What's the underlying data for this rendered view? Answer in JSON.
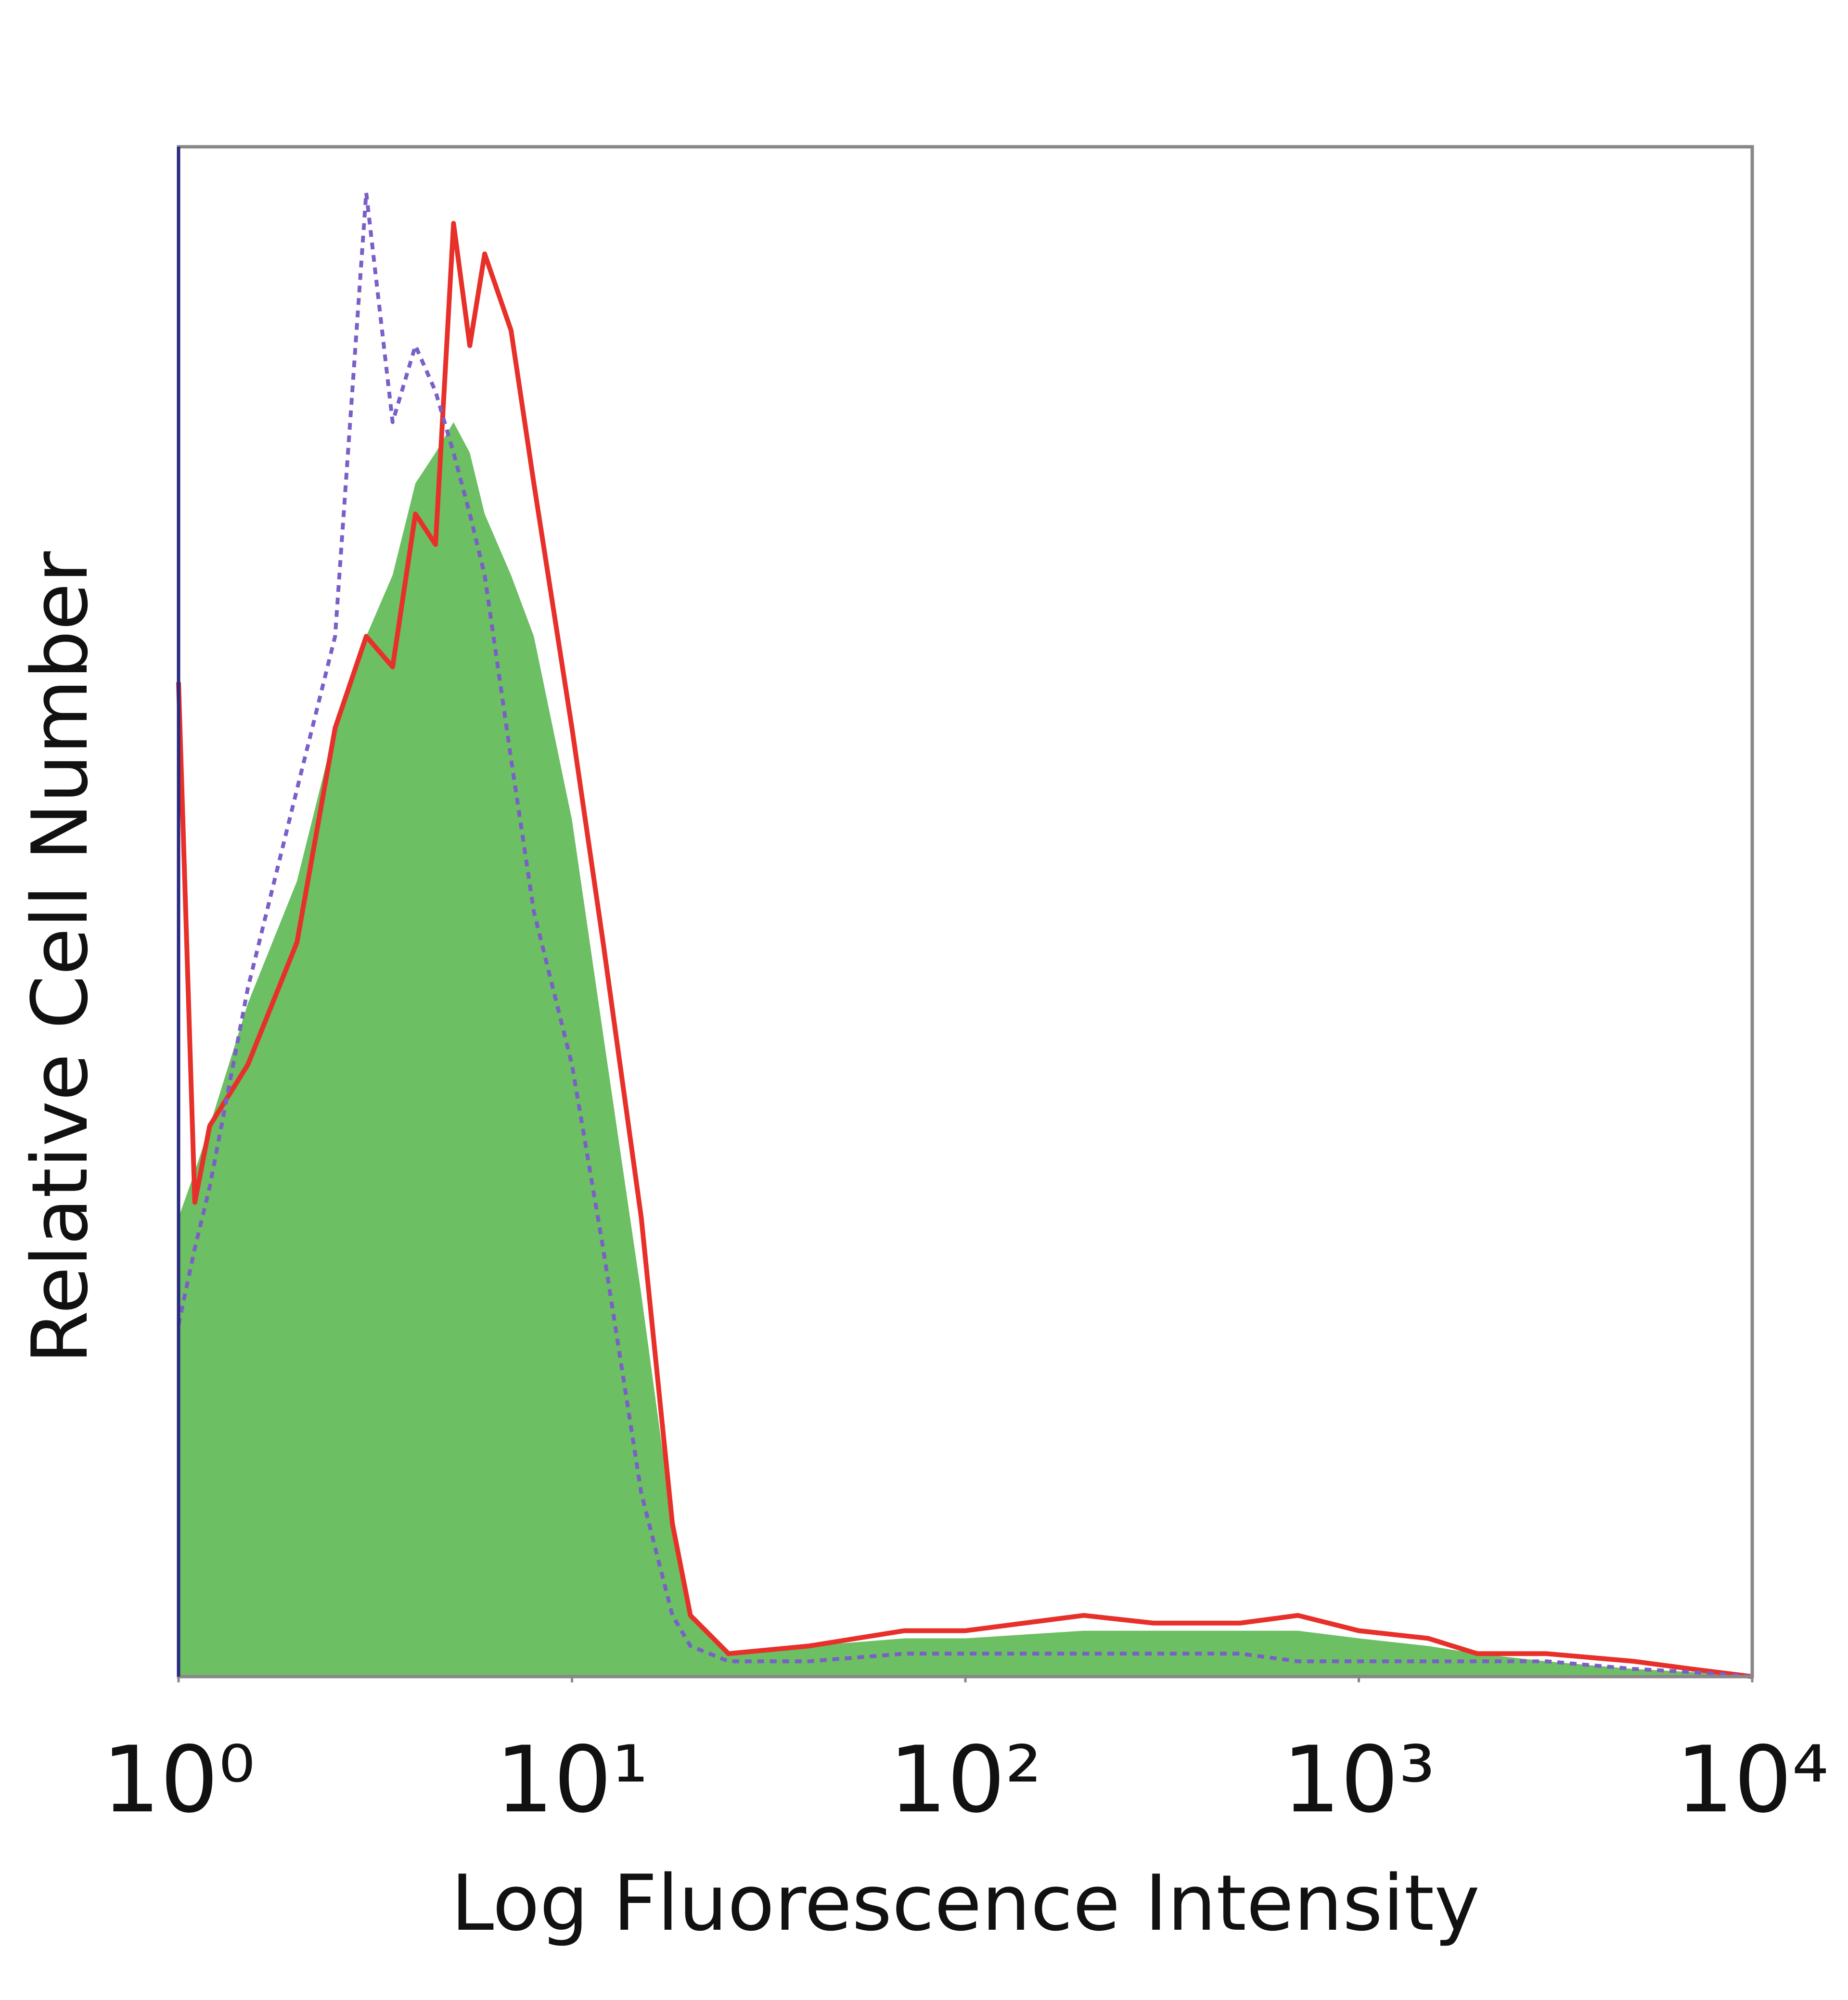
{
  "chart_data": {
    "type": "histogram-overlay",
    "x_label": "Log Fluorescence Intensity",
    "y_label": "Relative Cell Number",
    "xscale": "log",
    "xlim": [
      1,
      10000
    ],
    "xticks": [
      {
        "value": 1,
        "label": "10⁰"
      },
      {
        "value": 10,
        "label": "10¹"
      },
      {
        "value": 100,
        "label": "10²"
      },
      {
        "value": 1000,
        "label": "10³"
      },
      {
        "value": 10000,
        "label": "10⁴"
      }
    ],
    "ylim": [
      0,
      100
    ],
    "x": [
      1,
      1.1,
      1.2,
      1.5,
      2,
      2.5,
      3,
      3.5,
      4,
      4.5,
      5,
      5.5,
      6,
      7,
      8,
      10,
      12,
      15,
      18,
      20,
      25,
      40,
      70,
      100,
      200,
      300,
      500,
      700,
      1000,
      1500,
      2000,
      3000,
      5000,
      7000,
      10000
    ],
    "series": [
      {
        "style": "filled",
        "color": "#6cbf63",
        "values": [
          30,
          33,
          36,
          44,
          52,
          62,
          68,
          72,
          78,
          80,
          82,
          80,
          76,
          72,
          68,
          56,
          42,
          25,
          10,
          4,
          1.5,
          2,
          2.5,
          2.5,
          3,
          3,
          3,
          3,
          2.5,
          2,
          1.5,
          1,
          0.5,
          0.3,
          0
        ]
      },
      {
        "style": "solid",
        "color": "#e8302a",
        "values": [
          65,
          31,
          36,
          40,
          48,
          62,
          68,
          66,
          76,
          74,
          95,
          87,
          93,
          88,
          78,
          62,
          48,
          30,
          10,
          4,
          1.5,
          2,
          3,
          3,
          4,
          3.5,
          3.5,
          4,
          3,
          2.5,
          1.5,
          1.5,
          1,
          0.5,
          0
        ]
      },
      {
        "style": "dotted",
        "color": "#7b5fc8",
        "values": [
          23,
          28,
          32,
          45,
          58,
          68,
          97,
          82,
          87,
          84,
          80,
          76,
          72,
          60,
          50,
          40,
          28,
          12,
          4,
          2,
          1,
          1,
          1.5,
          1.5,
          1.5,
          1.5,
          1.5,
          1,
          1,
          1,
          1,
          1,
          0.5,
          0.3,
          0
        ]
      }
    ]
  }
}
